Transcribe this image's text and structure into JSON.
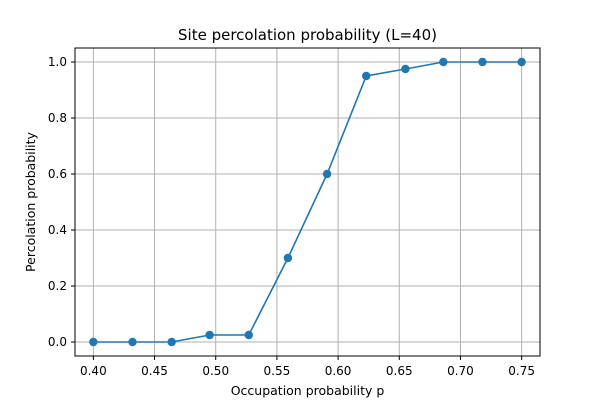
{
  "chart_data": {
    "type": "line",
    "title": "Site percolation probability (L=40)",
    "xlabel": "Occupation probability p",
    "ylabel": "Percolation probability",
    "xlim": [
      0.385,
      0.765
    ],
    "ylim": [
      -0.05,
      1.05
    ],
    "xticks": [
      0.4,
      0.45,
      0.5,
      0.55,
      0.6,
      0.65,
      0.7,
      0.75
    ],
    "xtick_labels": [
      "0.40",
      "0.45",
      "0.50",
      "0.55",
      "0.60",
      "0.65",
      "0.70",
      "0.75"
    ],
    "yticks": [
      0.0,
      0.2,
      0.4,
      0.6,
      0.8,
      1.0
    ],
    "ytick_labels": [
      "0.0",
      "0.2",
      "0.4",
      "0.6",
      "0.8",
      "1.0"
    ],
    "grid": true,
    "color": "#1f77b4",
    "series": [
      {
        "x": [
          0.4,
          0.432,
          0.464,
          0.495,
          0.527,
          0.559,
          0.591,
          0.623,
          0.655,
          0.686,
          0.718,
          0.75
        ],
        "y": [
          0.0,
          0.0,
          0.0,
          0.025,
          0.025,
          0.3,
          0.6,
          0.95,
          0.975,
          1.0,
          1.0,
          1.0
        ]
      }
    ]
  }
}
